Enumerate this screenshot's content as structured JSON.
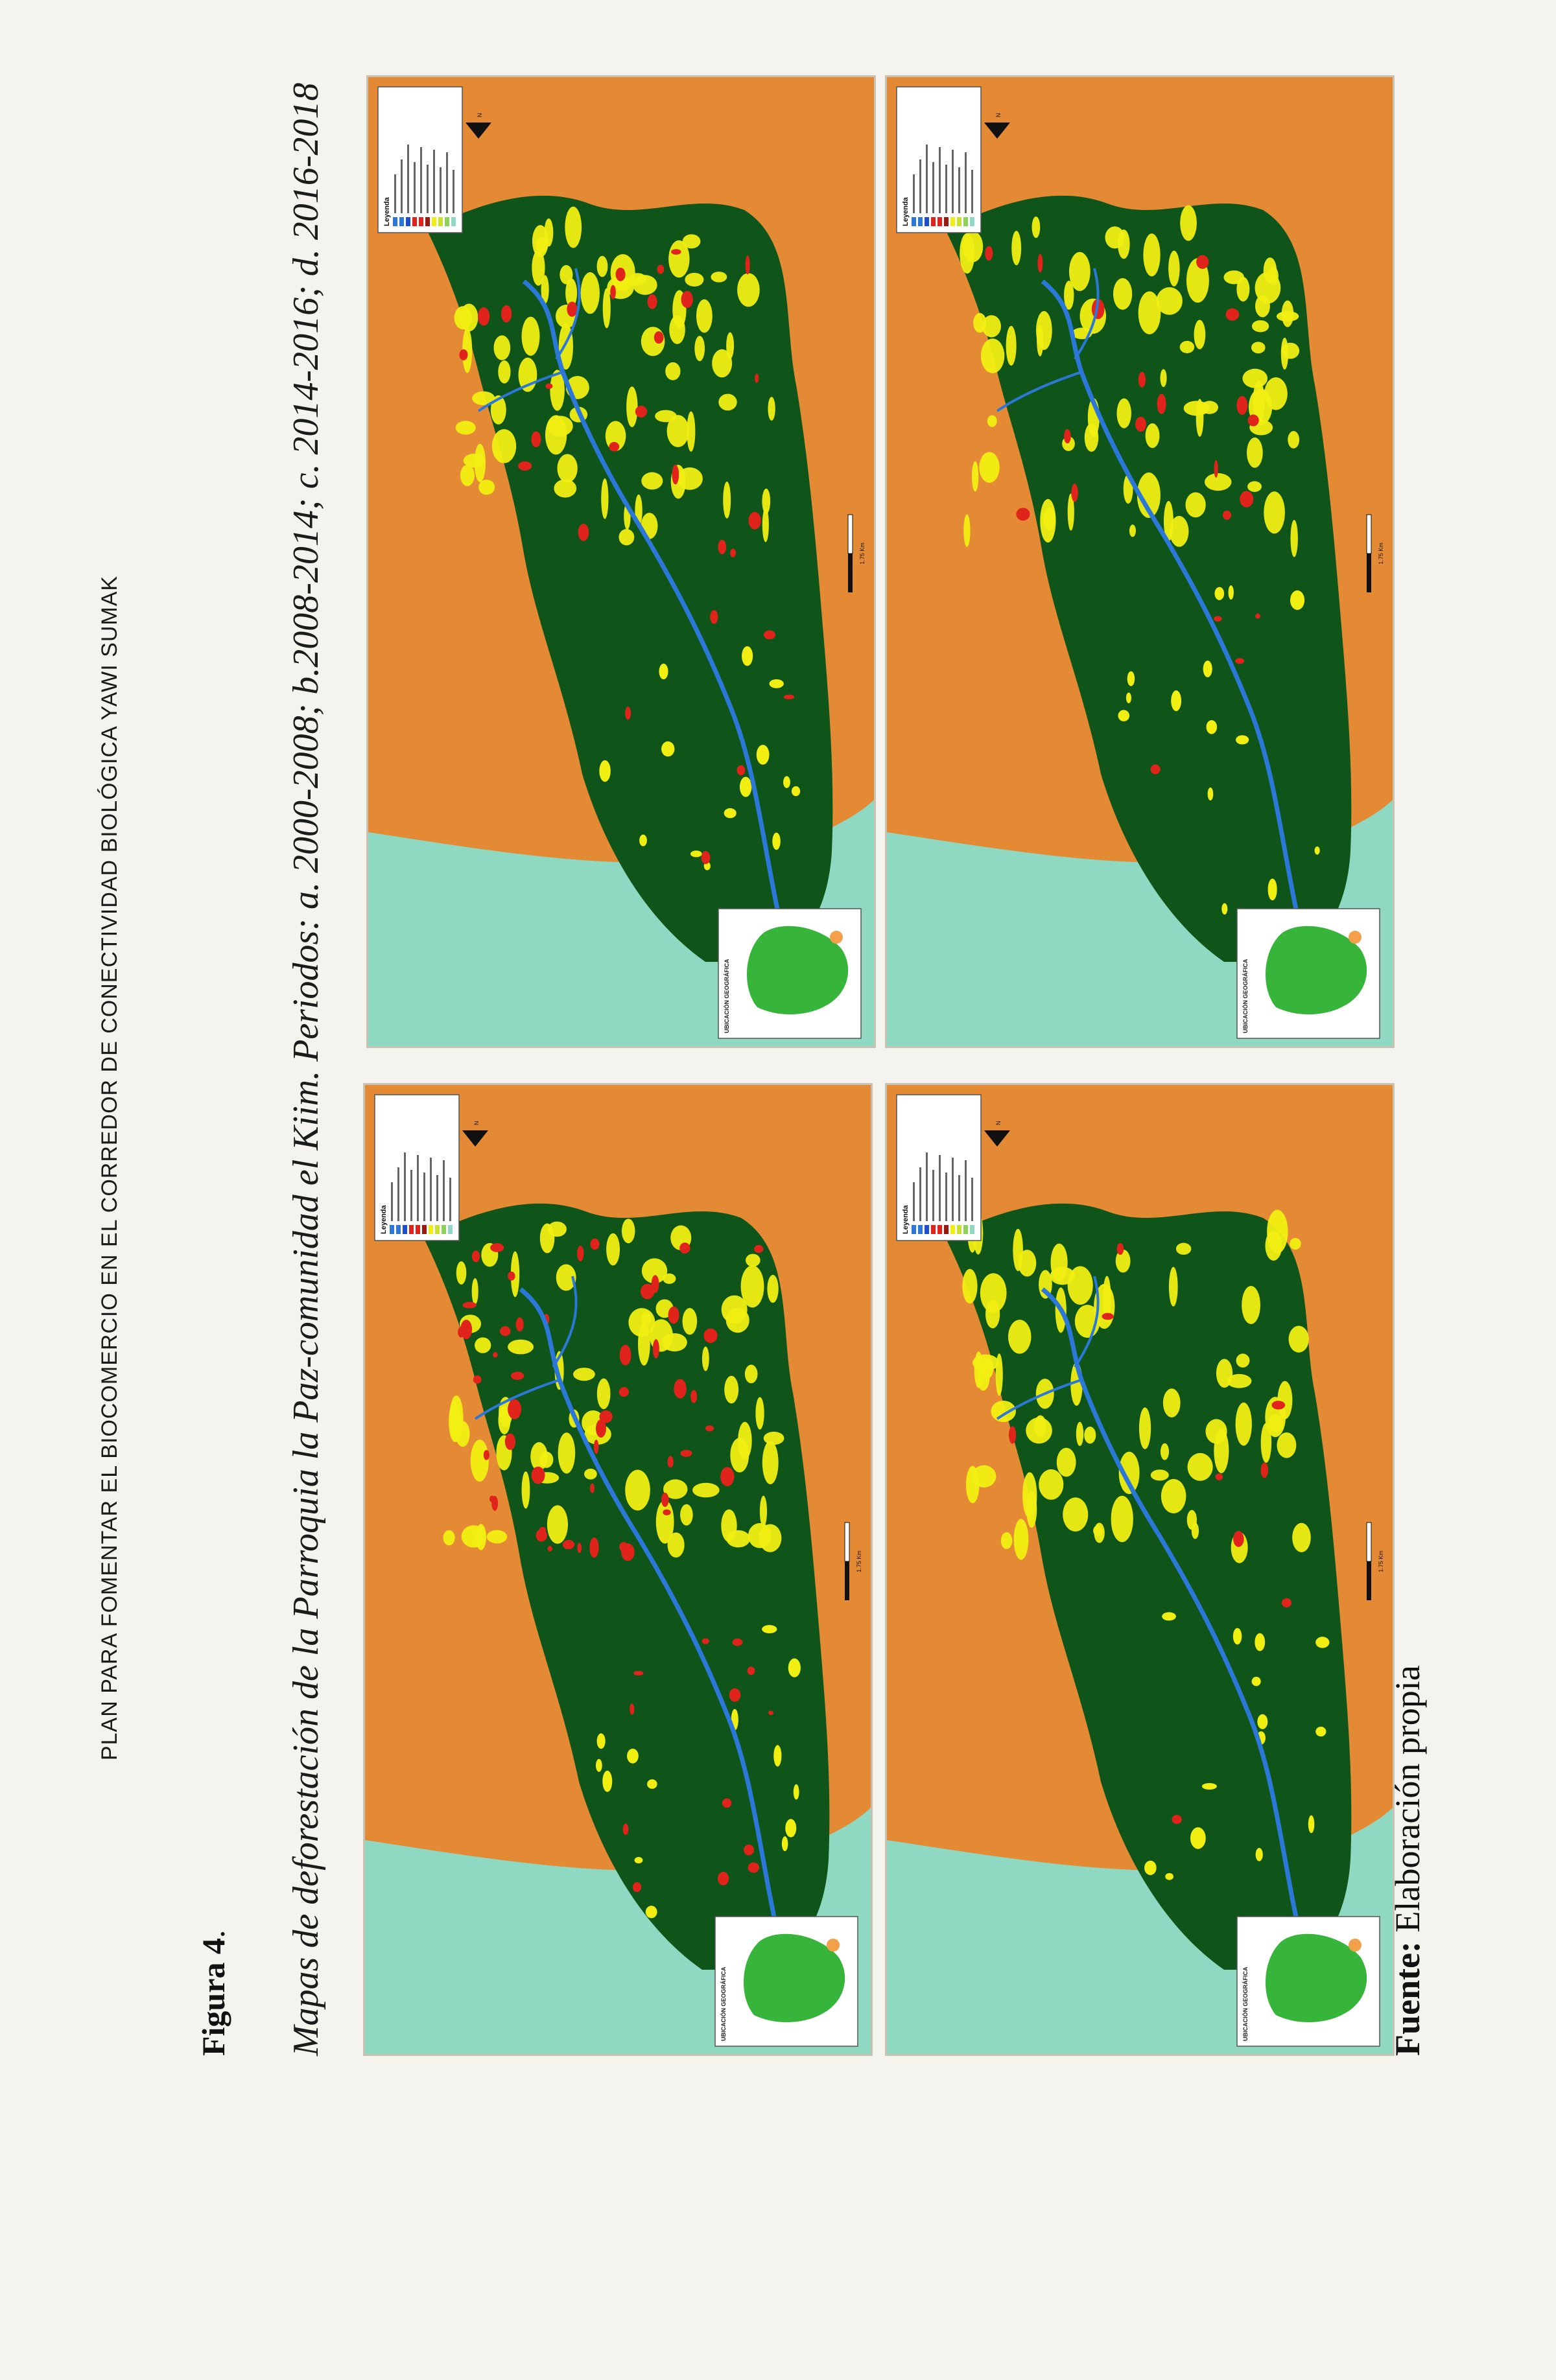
{
  "header": "PLAN PARA FOMENTAR EL BIOCOMERCIO EN EL CORREDOR DE CONECTIVIDAD BIOLÓGICA YAWI SUMAK",
  "figure_label": "Figura 4",
  "figure_label_suffix": ".",
  "caption": "Mapas de deforestación de la Parroquia la Paz-comunidad el Kiim. Periodos: a. 2000-2008; b.2008-2014; c. 2014-2016; d. 2016-2018",
  "source_label": "Fuente:",
  "source_text": "Elaboración propia",
  "colors": {
    "forest": "#0f5418",
    "crop": "#f1ef12",
    "deforestation": "#e0241b",
    "background": "#e48a35",
    "water": "#8fd9c2",
    "river": "#2c78d8"
  },
  "maps": [
    {
      "inset_title": "UBICACIÓN GEOGRÁFICA",
      "legend_title": "Leyenda",
      "scale_unit": "Km",
      "scale_value": "1.75",
      "period": "2000-2008"
    },
    {
      "inset_title": "UBICACIÓN GEOGRÁFICA",
      "legend_title": "Leyenda",
      "scale_unit": "Km",
      "scale_value": "1.75",
      "period": "2008-2014"
    },
    {
      "inset_title": "UBICACIÓN GEOGRÁFICA",
      "legend_title": "Leyenda",
      "scale_unit": "Km",
      "scale_value": "1.75",
      "period": "2014-2016"
    },
    {
      "inset_title": "UBICACIÓN GEOGRÁFICA",
      "legend_title": "Leyenda",
      "scale_unit": "Km",
      "scale_value": "1.75",
      "period": "2016-2018"
    }
  ]
}
